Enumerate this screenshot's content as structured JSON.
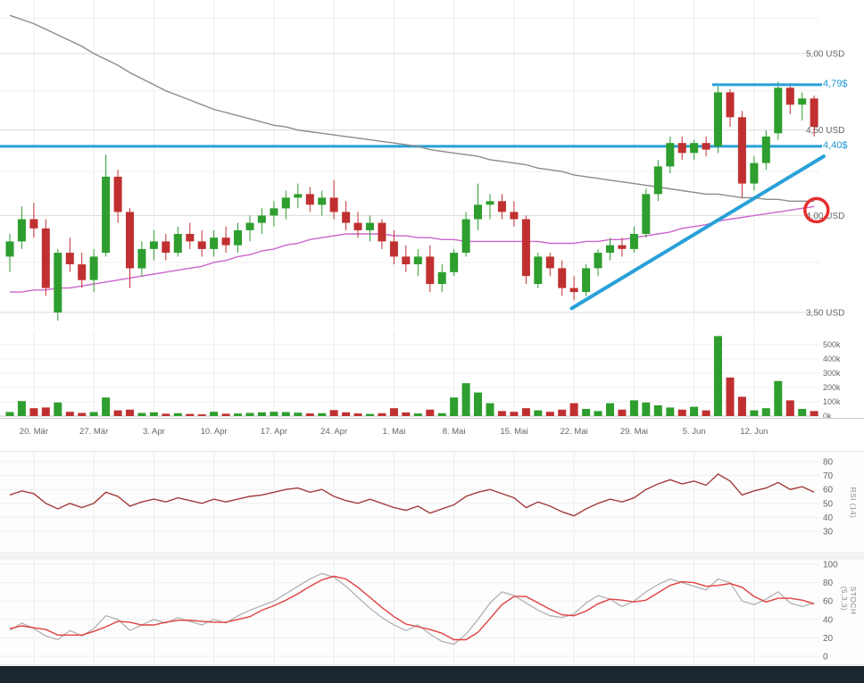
{
  "colors": {
    "up": "#2e9e2e",
    "down": "#c03030",
    "ma_long": "#8c8c8c",
    "ma_short": "#cc66cc",
    "level_blue": "#29a0d8",
    "label_blue": "#1d96d2",
    "circle": "#e62e2e",
    "rsi": "#a23b3b",
    "stoch_k": "#b5b5b5",
    "stoch_d": "#e04040",
    "grid_vertical": "#ececec",
    "grid_minor": "#efefef",
    "grid_major": "#dcdcdc",
    "axis_text": "#666666",
    "footer_bg": "#1b2631"
  },
  "indicators": {
    "rsi_label": "RSI (14)",
    "stoch_label": "STOCH (5,3,3)"
  },
  "chart_data": {
    "type": "candlestick_multi_panel",
    "price_scale": "log",
    "panels": [
      "price",
      "volume",
      "rsi",
      "stoch"
    ],
    "price_axis_ticks": [
      {
        "text": "5,00 USD",
        "value": 5.0
      },
      {
        "text": "4,50 USD",
        "value": 4.5
      },
      {
        "text": "4,00 USD",
        "value": 4.0
      },
      {
        "text": "3,50 USD",
        "value": 3.5
      }
    ],
    "volume_axis_ticks": [
      {
        "text": "500k",
        "value": 500
      },
      {
        "text": "400k",
        "value": 400
      },
      {
        "text": "300k",
        "value": 300
      },
      {
        "text": "200k",
        "value": 200
      },
      {
        "text": "100k",
        "value": 100
      },
      {
        "text": "0k",
        "value": 0
      }
    ],
    "rsi_axis_ticks": [
      80,
      70,
      60,
      50,
      40,
      30
    ],
    "stoch_axis_ticks": [
      100,
      80,
      60,
      40,
      20,
      0
    ],
    "x_axis_labels": [
      {
        "text": "20. Mär",
        "index": 2
      },
      {
        "text": "27. Mär",
        "index": 7
      },
      {
        "text": "3. Apr",
        "index": 12
      },
      {
        "text": "10. Apr",
        "index": 17
      },
      {
        "text": "17. Apr",
        "index": 22
      },
      {
        "text": "24. Apr",
        "index": 27
      },
      {
        "text": "1. Mai",
        "index": 32
      },
      {
        "text": "8. Mai",
        "index": 37
      },
      {
        "text": "15. Mai",
        "index": 42
      },
      {
        "text": "22. Mai",
        "index": 47
      },
      {
        "text": "29. Mai",
        "index": 52
      },
      {
        "text": "5. Jun",
        "index": 57
      },
      {
        "text": "12. Jun",
        "index": 62
      }
    ],
    "candles_ohlc": [
      [
        3.78,
        3.9,
        3.7,
        3.86
      ],
      [
        3.86,
        4.05,
        3.82,
        3.98
      ],
      [
        3.98,
        4.07,
        3.88,
        3.93
      ],
      [
        3.93,
        3.98,
        3.58,
        3.62
      ],
      [
        3.5,
        3.82,
        3.46,
        3.8
      ],
      [
        3.8,
        3.88,
        3.7,
        3.74
      ],
      [
        3.74,
        3.8,
        3.62,
        3.66
      ],
      [
        3.66,
        3.82,
        3.6,
        3.78
      ],
      [
        3.8,
        4.35,
        3.78,
        4.22
      ],
      [
        4.22,
        4.26,
        3.96,
        4.02
      ],
      [
        4.02,
        4.04,
        3.62,
        3.72
      ],
      [
        3.72,
        3.86,
        3.68,
        3.82
      ],
      [
        3.82,
        3.92,
        3.76,
        3.86
      ],
      [
        3.86,
        3.9,
        3.76,
        3.8
      ],
      [
        3.8,
        3.94,
        3.78,
        3.9
      ],
      [
        3.9,
        3.96,
        3.82,
        3.86
      ],
      [
        3.86,
        3.92,
        3.78,
        3.82
      ],
      [
        3.82,
        3.92,
        3.78,
        3.88
      ],
      [
        3.88,
        3.94,
        3.8,
        3.84
      ],
      [
        3.84,
        3.96,
        3.8,
        3.92
      ],
      [
        3.92,
        4.0,
        3.86,
        3.96
      ],
      [
        3.96,
        4.04,
        3.9,
        4.0
      ],
      [
        4.0,
        4.08,
        3.94,
        4.04
      ],
      [
        4.04,
        4.14,
        3.98,
        4.1
      ],
      [
        4.1,
        4.18,
        4.04,
        4.12
      ],
      [
        4.12,
        4.16,
        4.02,
        4.06
      ],
      [
        4.06,
        4.14,
        4.0,
        4.1
      ],
      [
        4.1,
        4.2,
        3.98,
        4.02
      ],
      [
        4.02,
        4.08,
        3.92,
        3.96
      ],
      [
        3.96,
        4.02,
        3.88,
        3.92
      ],
      [
        3.92,
        4.0,
        3.86,
        3.96
      ],
      [
        3.96,
        3.98,
        3.82,
        3.86
      ],
      [
        3.86,
        3.92,
        3.74,
        3.78
      ],
      [
        3.78,
        3.84,
        3.7,
        3.74
      ],
      [
        3.74,
        3.82,
        3.68,
        3.78
      ],
      [
        3.78,
        3.84,
        3.6,
        3.64
      ],
      [
        3.64,
        3.74,
        3.6,
        3.7
      ],
      [
        3.7,
        3.82,
        3.68,
        3.8
      ],
      [
        3.8,
        4.02,
        3.78,
        3.98
      ],
      [
        3.98,
        4.18,
        3.92,
        4.06
      ],
      [
        4.06,
        4.12,
        3.98,
        4.08
      ],
      [
        4.08,
        4.12,
        3.98,
        4.02
      ],
      [
        4.02,
        4.08,
        3.94,
        3.98
      ],
      [
        3.98,
        4.0,
        3.64,
        3.68
      ],
      [
        3.64,
        3.8,
        3.62,
        3.78
      ],
      [
        3.78,
        3.8,
        3.68,
        3.72
      ],
      [
        3.72,
        3.76,
        3.58,
        3.62
      ],
      [
        3.62,
        3.68,
        3.56,
        3.6
      ],
      [
        3.6,
        3.74,
        3.58,
        3.72
      ],
      [
        3.72,
        3.82,
        3.68,
        3.8
      ],
      [
        3.8,
        3.88,
        3.76,
        3.84
      ],
      [
        3.84,
        3.88,
        3.78,
        3.82
      ],
      [
        3.82,
        3.94,
        3.8,
        3.9
      ],
      [
        3.9,
        4.15,
        3.88,
        4.12
      ],
      [
        4.12,
        4.32,
        4.08,
        4.28
      ],
      [
        4.28,
        4.46,
        4.24,
        4.42
      ],
      [
        4.42,
        4.46,
        4.32,
        4.36
      ],
      [
        4.36,
        4.44,
        4.32,
        4.42
      ],
      [
        4.42,
        4.46,
        4.34,
        4.38
      ],
      [
        4.4,
        4.78,
        4.36,
        4.74
      ],
      [
        4.74,
        4.76,
        4.52,
        4.58
      ],
      [
        4.58,
        4.62,
        4.1,
        4.18
      ],
      [
        4.18,
        4.34,
        4.14,
        4.3
      ],
      [
        4.3,
        4.5,
        4.26,
        4.46
      ],
      [
        4.48,
        4.81,
        4.44,
        4.77
      ],
      [
        4.77,
        4.8,
        4.6,
        4.66
      ],
      [
        4.66,
        4.74,
        4.56,
        4.7
      ],
      [
        4.7,
        4.72,
        4.46,
        4.52
      ]
    ],
    "volume_k": [
      28,
      105,
      55,
      60,
      95,
      30,
      22,
      28,
      130,
      40,
      45,
      22,
      26,
      16,
      20,
      15,
      12,
      30,
      16,
      18,
      22,
      26,
      30,
      28,
      24,
      18,
      20,
      42,
      26,
      18,
      15,
      20,
      55,
      25,
      18,
      45,
      20,
      130,
      230,
      165,
      90,
      35,
      30,
      55,
      40,
      30,
      45,
      90,
      50,
      35,
      90,
      45,
      110,
      95,
      75,
      60,
      45,
      65,
      40,
      560,
      270,
      135,
      40,
      55,
      245,
      110,
      50,
      35
    ],
    "ma_long": [
      5.27,
      5.24,
      5.21,
      5.17,
      5.13,
      5.09,
      5.05,
      5.0,
      4.96,
      4.92,
      4.87,
      4.83,
      4.79,
      4.75,
      4.72,
      4.69,
      4.66,
      4.63,
      4.61,
      4.59,
      4.57,
      4.55,
      4.53,
      4.52,
      4.5,
      4.49,
      4.48,
      4.47,
      4.46,
      4.45,
      4.44,
      4.43,
      4.42,
      4.41,
      4.4,
      4.38,
      4.37,
      4.36,
      4.35,
      4.34,
      4.32,
      4.31,
      4.3,
      4.29,
      4.27,
      4.26,
      4.25,
      4.23,
      4.22,
      4.21,
      4.2,
      4.19,
      4.18,
      4.17,
      4.16,
      4.15,
      4.14,
      4.13,
      4.12,
      4.12,
      4.11,
      4.1,
      4.1,
      4.09,
      4.09,
      4.08,
      4.08,
      4.08
    ],
    "ma_short": [
      3.6,
      3.6,
      3.61,
      3.61,
      3.62,
      3.62,
      3.63,
      3.64,
      3.65,
      3.66,
      3.67,
      3.68,
      3.69,
      3.7,
      3.71,
      3.72,
      3.73,
      3.75,
      3.76,
      3.78,
      3.79,
      3.81,
      3.82,
      3.84,
      3.85,
      3.87,
      3.88,
      3.89,
      3.9,
      3.9,
      3.9,
      3.9,
      3.89,
      3.89,
      3.88,
      3.88,
      3.87,
      3.87,
      3.86,
      3.86,
      3.86,
      3.86,
      3.86,
      3.86,
      3.86,
      3.85,
      3.85,
      3.85,
      3.86,
      3.86,
      3.87,
      3.87,
      3.88,
      3.89,
      3.9,
      3.91,
      3.93,
      3.94,
      3.95,
      3.97,
      3.98,
      3.99,
      4.0,
      4.01,
      4.02,
      4.03,
      4.04,
      4.05
    ],
    "rsi_14": [
      56,
      59,
      57,
      50,
      46,
      50,
      47,
      50,
      58,
      55,
      48,
      51,
      53,
      51,
      54,
      52,
      50,
      53,
      51,
      53,
      55,
      56,
      58,
      60,
      61,
      58,
      60,
      55,
      52,
      50,
      53,
      50,
      47,
      45,
      48,
      43,
      46,
      49,
      55,
      58,
      60,
      57,
      54,
      47,
      51,
      48,
      44,
      41,
      46,
      50,
      53,
      51,
      54,
      60,
      64,
      67,
      64,
      66,
      63,
      71,
      66,
      56,
      59,
      61,
      65,
      60,
      62,
      58
    ],
    "stoch_k": [
      28,
      36,
      30,
      22,
      18,
      28,
      22,
      30,
      44,
      40,
      28,
      34,
      40,
      36,
      42,
      38,
      34,
      40,
      36,
      44,
      50,
      55,
      60,
      68,
      76,
      84,
      90,
      86,
      76,
      64,
      52,
      42,
      34,
      28,
      34,
      24,
      16,
      13,
      24,
      40,
      58,
      70,
      66,
      58,
      50,
      44,
      42,
      46,
      58,
      66,
      62,
      54,
      60,
      70,
      78,
      84,
      80,
      76,
      72,
      84,
      80,
      60,
      56,
      62,
      70,
      58,
      54,
      58
    ],
    "stoch_d": [
      30,
      33,
      31,
      29,
      23,
      23,
      23,
      27,
      32,
      38,
      37,
      34,
      34,
      37,
      39,
      39,
      38,
      37,
      37,
      40,
      43,
      50,
      55,
      61,
      68,
      76,
      83,
      87,
      84,
      75,
      64,
      53,
      43,
      35,
      32,
      29,
      25,
      18,
      18,
      26,
      41,
      56,
      65,
      65,
      58,
      51,
      45,
      44,
      49,
      57,
      62,
      61,
      59,
      61,
      69,
      77,
      81,
      80,
      76,
      77,
      79,
      75,
      65,
      59,
      63,
      63,
      61,
      57
    ],
    "annotations": {
      "resistance": {
        "text": "4,79$",
        "price": 4.79,
        "start_index": 58.5
      },
      "support": {
        "text": "4,40$",
        "price": 4.4
      },
      "trendline": {
        "from": {
          "index": 46.8,
          "price": 3.52
        },
        "to": {
          "index": 67.8,
          "price": 4.34
        }
      },
      "highlight_circle": {
        "index": 67.2,
        "price": 4.03
      }
    }
  }
}
